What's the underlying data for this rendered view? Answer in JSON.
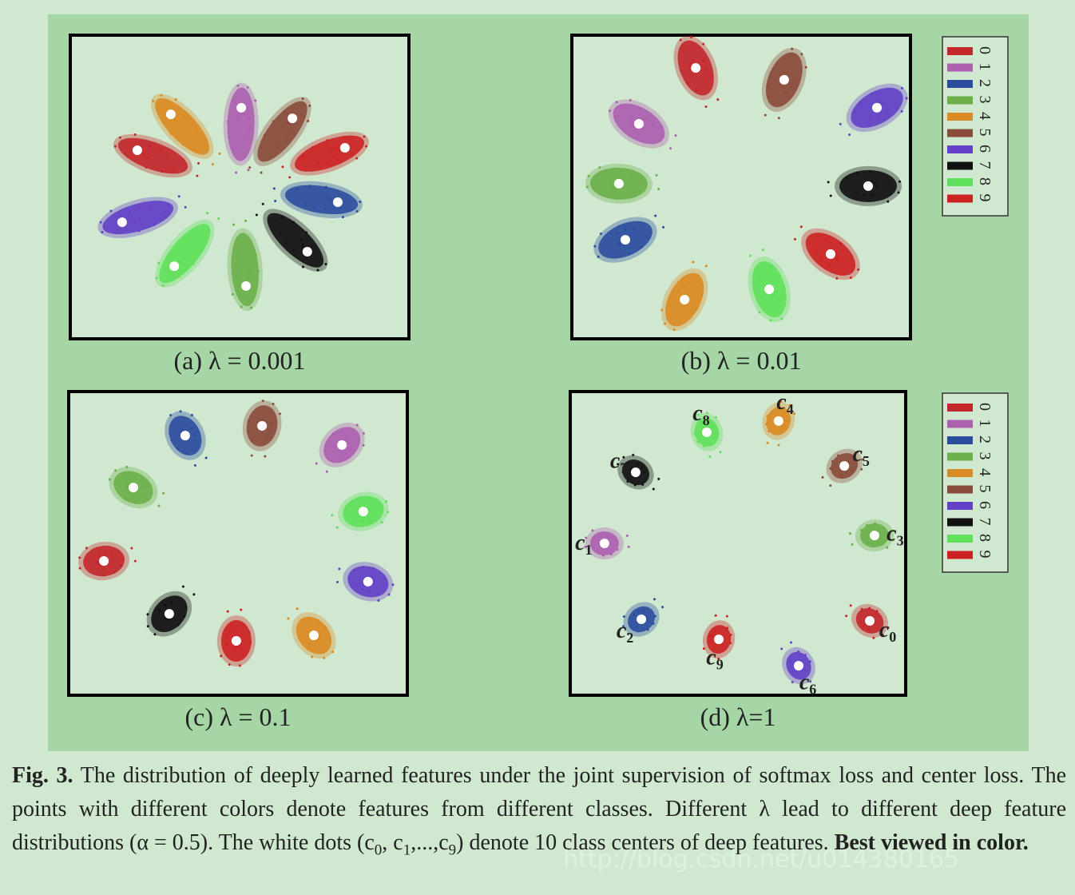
{
  "chart_data": [
    {
      "type": "scatter",
      "title": "(a) λ = 0.001",
      "xlim": [
        0,
        100
      ],
      "ylim": [
        0,
        100
      ],
      "legend": false,
      "series": [
        {
          "name": "0",
          "color": "#c3272b",
          "x": [
            19.8
          ],
          "y": [
            62.1
          ]
        },
        {
          "name": "1",
          "color": "#ad5fb0",
          "x": [
            50.5
          ],
          "y": [
            76.1
          ]
        },
        {
          "name": "2",
          "color": "#2b4c9e",
          "x": [
            79.0
          ],
          "y": [
            45.0
          ]
        },
        {
          "name": "3",
          "color": "#6bb04a",
          "x": [
            51.9
          ],
          "y": [
            17.4
          ]
        },
        {
          "name": "4",
          "color": "#d98a22",
          "x": [
            29.7
          ],
          "y": [
            73.9
          ]
        },
        {
          "name": "5",
          "color": "#8b4b3b",
          "x": [
            65.6
          ],
          "y": [
            72.6
          ]
        },
        {
          "name": "6",
          "color": "#6340c6",
          "x": [
            15.3
          ],
          "y": [
            38.4
          ]
        },
        {
          "name": "7",
          "color": "#111111",
          "x": [
            70.0
          ],
          "y": [
            28.7
          ]
        },
        {
          "name": "8",
          "color": "#5fe05a",
          "x": [
            30.7
          ],
          "y": [
            23.9
          ]
        },
        {
          "name": "9",
          "color": "#cc2222",
          "x": [
            81.1
          ],
          "y": [
            62.9
          ]
        }
      ]
    },
    {
      "type": "scatter",
      "title": "(b) λ = 0.01",
      "xlim": [
        0,
        100
      ],
      "ylim": [
        0,
        100
      ],
      "legend": true,
      "series": [
        {
          "name": "0",
          "color": "#c3272b",
          "x": [
            36.6
          ],
          "y": [
            89.2
          ]
        },
        {
          "name": "1",
          "color": "#ad5fb0",
          "x": [
            19.8
          ],
          "y": [
            70.8
          ]
        },
        {
          "name": "2",
          "color": "#2b4c9e",
          "x": [
            15.8
          ],
          "y": [
            32.6
          ]
        },
        {
          "name": "3",
          "color": "#6bb04a",
          "x": [
            13.9
          ],
          "y": [
            51.1
          ]
        },
        {
          "name": "4",
          "color": "#d98a22",
          "x": [
            33.3
          ],
          "y": [
            12.9
          ]
        },
        {
          "name": "5",
          "color": "#8b4b3b",
          "x": [
            62.7
          ],
          "y": [
            85.3
          ]
        },
        {
          "name": "6",
          "color": "#6340c6",
          "x": [
            90.1
          ],
          "y": [
            76.1
          ]
        },
        {
          "name": "7",
          "color": "#111111",
          "x": [
            87.5
          ],
          "y": [
            50.3
          ]
        },
        {
          "name": "8",
          "color": "#5fe05a",
          "x": [
            58.3
          ],
          "y": [
            16.3
          ]
        },
        {
          "name": "9",
          "color": "#cc2222",
          "x": [
            76.4
          ],
          "y": [
            27.9
          ]
        }
      ]
    },
    {
      "type": "scatter",
      "title": "(c) λ = 0.1",
      "xlim": [
        0,
        100
      ],
      "ylim": [
        0,
        100
      ],
      "legend": false,
      "series": [
        {
          "name": "0",
          "color": "#c3272b",
          "x": [
            10.4
          ],
          "y": [
            44.2
          ]
        },
        {
          "name": "1",
          "color": "#ad5fb0",
          "x": [
            80.7
          ],
          "y": [
            82.4
          ]
        },
        {
          "name": "2",
          "color": "#2b4c9e",
          "x": [
            34.4
          ],
          "y": [
            85.5
          ]
        },
        {
          "name": "3",
          "color": "#6bb04a",
          "x": [
            19.1
          ],
          "y": [
            68.4
          ]
        },
        {
          "name": "4",
          "color": "#d98a22",
          "x": [
            72.4
          ],
          "y": [
            19.7
          ]
        },
        {
          "name": "5",
          "color": "#8b4b3b",
          "x": [
            57.1
          ],
          "y": [
            88.7
          ]
        },
        {
          "name": "6",
          "color": "#6340c6",
          "x": [
            88.4
          ],
          "y": [
            37.4
          ]
        },
        {
          "name": "7",
          "color": "#111111",
          "x": [
            29.7
          ],
          "y": [
            26.8
          ]
        },
        {
          "name": "8",
          "color": "#5fe05a",
          "x": [
            87.0
          ],
          "y": [
            60.5
          ]
        },
        {
          "name": "9",
          "color": "#cc2222",
          "x": [
            49.5
          ],
          "y": [
            17.9
          ]
        }
      ]
    },
    {
      "type": "scatter",
      "title": "(d) λ=1",
      "xlim": [
        0,
        100
      ],
      "ylim": [
        0,
        100
      ],
      "legend": true,
      "series": [
        {
          "name": "0",
          "color": "#c3272b",
          "x": [
            89.3
          ],
          "y": [
            24.5
          ],
          "label": "c",
          "label_sub": "0"
        },
        {
          "name": "1",
          "color": "#ad5fb0",
          "x": [
            10.2
          ],
          "y": [
            50.0
          ],
          "label": "c",
          "label_sub": "1"
        },
        {
          "name": "2",
          "color": "#2b4c9e",
          "x": [
            21.2
          ],
          "y": [
            25.0
          ],
          "label": "c",
          "label_sub": "2"
        },
        {
          "name": "3",
          "color": "#6bb04a",
          "x": [
            90.7
          ],
          "y": [
            52.6
          ],
          "label": "c",
          "label_sub": "3"
        },
        {
          "name": "4",
          "color": "#d98a22",
          "x": [
            62.1
          ],
          "y": [
            90.3
          ],
          "label": "c",
          "label_sub": "4"
        },
        {
          "name": "5",
          "color": "#8b4b3b",
          "x": [
            81.7
          ],
          "y": [
            75.5
          ],
          "label": "c",
          "label_sub": "5"
        },
        {
          "name": "6",
          "color": "#6340c6",
          "x": [
            68.1
          ],
          "y": [
            9.7
          ],
          "label": "c",
          "label_sub": "6"
        },
        {
          "name": "7",
          "color": "#111111",
          "x": [
            19.5
          ],
          "y": [
            73.4
          ],
          "label": "c",
          "label_sub": "7"
        },
        {
          "name": "8",
          "color": "#5fe05a",
          "x": [
            40.7
          ],
          "y": [
            86.6
          ],
          "label": "c",
          "label_sub": "8"
        },
        {
          "name": "9",
          "color": "#cc2222",
          "x": [
            44.3
          ],
          "y": [
            18.4
          ],
          "label": "c",
          "label_sub": "9"
        }
      ]
    }
  ],
  "caption": [
    {
      "text": "Fig. 3.",
      "bold": true
    },
    {
      "text": " The distribution of deeply learned features under the joint supervision of softmax loss and center loss. The points with different colors denote features from different classes. Different λ lead to different deep feature distributions (α = 0.5). The white dots ("
    },
    {
      "text": "c"
    },
    {
      "text": "0",
      "sub": true
    },
    {
      "text": ", "
    },
    {
      "text": "c"
    },
    {
      "text": "1",
      "sub": true
    },
    {
      "text": ",...,"
    },
    {
      "text": "c"
    },
    {
      "text": "9",
      "sub": true
    },
    {
      "text": ") denote 10 class centers of deep features. "
    },
    {
      "text": "Best viewed in color.",
      "bold": true
    }
  ],
  "watermark": "http://blog.csdn.net/u014380165"
}
